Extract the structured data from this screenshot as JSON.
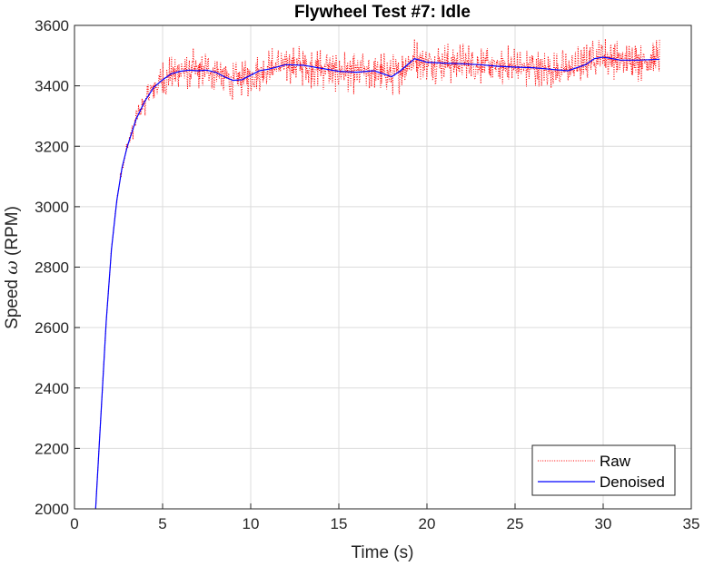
{
  "chart_data": {
    "type": "line",
    "title": "Flywheel Test #7: Idle",
    "xlabel": "Time (s)",
    "ylabel_prefix": "Speed ",
    "ylabel_symbol": "ω",
    "ylabel_suffix": " (RPM)",
    "xlim": [
      0,
      35
    ],
    "ylim": [
      2000,
      3600
    ],
    "xticks": [
      0,
      5,
      10,
      15,
      20,
      25,
      30,
      35
    ],
    "yticks": [
      2000,
      2200,
      2400,
      2600,
      2800,
      3000,
      3200,
      3400,
      3600
    ],
    "grid": true,
    "legend_position": "bottom-right",
    "series": [
      {
        "name": "Raw",
        "style": "dotted",
        "color": "#ff0000",
        "t_range": [
          1.2,
          33.2
        ],
        "noise_amplitude_rpm": 75
      },
      {
        "name": "Denoised",
        "style": "solid",
        "color": "#0000ff",
        "x": [
          1.2,
          1.5,
          1.8,
          2.1,
          2.4,
          2.7,
          3.0,
          3.5,
          4.0,
          4.5,
          5.0,
          5.5,
          6.0,
          6.5,
          7.0,
          7.5,
          8.0,
          8.5,
          9.0,
          9.5,
          10.0,
          10.5,
          11.0,
          12.0,
          13.0,
          14.0,
          15.0,
          16.0,
          17.0,
          17.5,
          18.0,
          18.5,
          19.0,
          19.3,
          19.6,
          20.0,
          21.0,
          22.0,
          23.0,
          24.0,
          25.0,
          26.0,
          27.0,
          28.0,
          29.0,
          29.5,
          30.0,
          31.0,
          32.0,
          33.2
        ],
        "y": [
          2000,
          2310,
          2620,
          2860,
          3020,
          3130,
          3200,
          3290,
          3350,
          3395,
          3420,
          3440,
          3448,
          3452,
          3450,
          3452,
          3445,
          3430,
          3418,
          3420,
          3435,
          3450,
          3455,
          3470,
          3468,
          3458,
          3448,
          3445,
          3450,
          3440,
          3430,
          3450,
          3475,
          3490,
          3485,
          3478,
          3475,
          3473,
          3470,
          3465,
          3462,
          3460,
          3455,
          3450,
          3470,
          3490,
          3495,
          3485,
          3485,
          3488
        ]
      }
    ]
  }
}
